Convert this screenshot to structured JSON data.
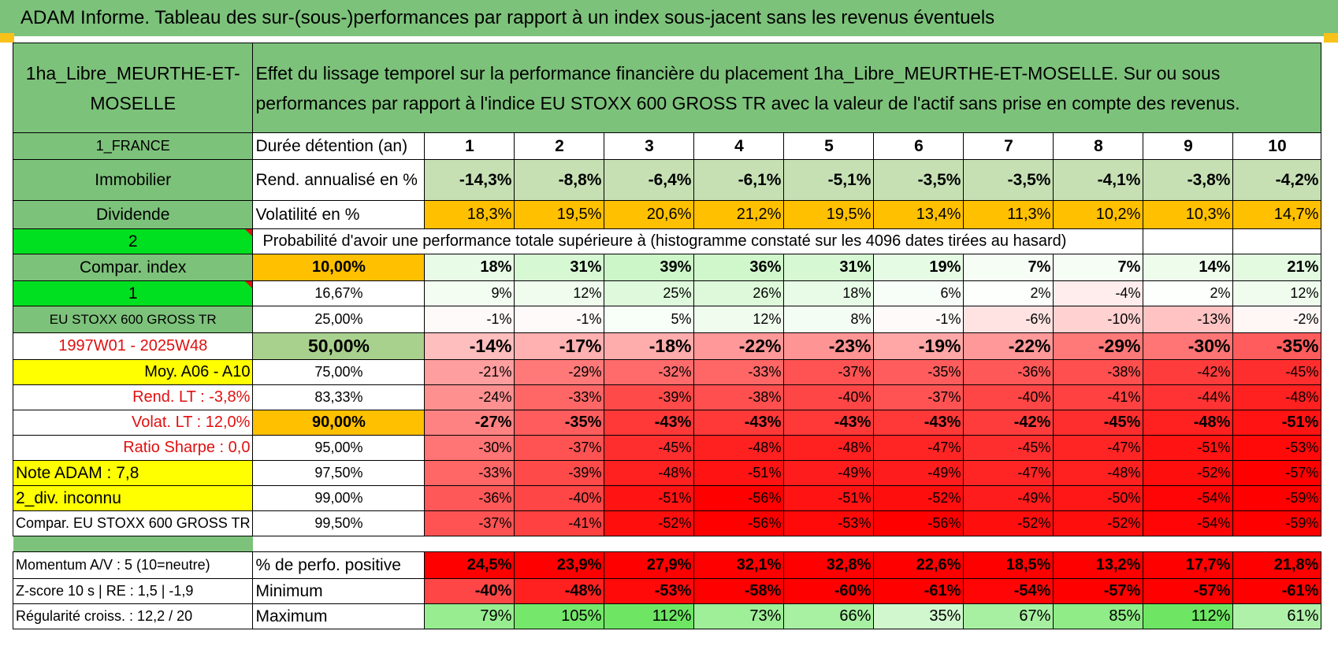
{
  "title": "ADAM Informe. Tableau des sur-(sous-)performances par rapport à un index sous-jacent sans les revenus éventuels",
  "header": {
    "asset_name": "1ha_Libre_MEURTHE-ET-MOSELLE",
    "description": "Effet du lissage temporel sur la performance financière du placement 1ha_Libre_MEURTHE-ET-MOSELLE. Sur ou sous performances par rapport à l'indice EU STOXX 600 GROSS TR avec la valeur de l'actif sans prise en compte des revenus."
  },
  "side": {
    "country": "1_FRANCE",
    "category": "Immobilier",
    "type": "Dividende",
    "selector_a": "2",
    "compar_label": "Compar. index",
    "selector_b": "1",
    "index_name": "EU STOXX 600 GROSS TR",
    "period": "1997W01 - 2025W48",
    "avg": "Moy. A06 - A10",
    "rend_lt": "Rend. LT :    -3,8%",
    "volat_lt": "Volat. LT :    12,0%",
    "sharpe": "Ratio Sharpe :     0,0",
    "note": "Note ADAM : 7,8",
    "div": "2_div. inconnu",
    "compar_full": "Compar. EU STOXX 600 GROSS TR"
  },
  "rows": {
    "duree_label": "Durée détention (an)",
    "years": [
      "1",
      "2",
      "3",
      "4",
      "5",
      "6",
      "7",
      "8",
      "9",
      "10"
    ],
    "rend_label": "Rend. annualisé en %",
    "rend": [
      "-14,3%",
      "-8,8%",
      "-6,4%",
      "-6,1%",
      "-5,1%",
      "-3,5%",
      "-3,5%",
      "-4,1%",
      "-3,8%",
      "-4,2%"
    ],
    "vol_label": "Volatilité en %",
    "vol": [
      "18,3%",
      "19,5%",
      "20,6%",
      "21,2%",
      "19,5%",
      "13,4%",
      "11,3%",
      "10,2%",
      "10,3%",
      "14,7%"
    ],
    "prob_label": "Probabilité d'avoir une performance totale supérieure à (histogramme constaté sur les 4096 dates tirées au hasard)"
  },
  "percentiles": [
    {
      "p": "10,00%",
      "v": [
        "18%",
        "31%",
        "39%",
        "36%",
        "31%",
        "19%",
        "7%",
        "7%",
        "14%",
        "21%"
      ]
    },
    {
      "p": "16,67%",
      "v": [
        "9%",
        "12%",
        "25%",
        "26%",
        "18%",
        "6%",
        "2%",
        "-4%",
        "2%",
        "12%"
      ]
    },
    {
      "p": "25,00%",
      "v": [
        "-1%",
        "-1%",
        "5%",
        "12%",
        "8%",
        "-1%",
        "-6%",
        "-10%",
        "-13%",
        "-2%"
      ]
    },
    {
      "p": "50,00%",
      "v": [
        "-14%",
        "-17%",
        "-18%",
        "-22%",
        "-23%",
        "-19%",
        "-22%",
        "-29%",
        "-30%",
        "-35%"
      ]
    },
    {
      "p": "75,00%",
      "v": [
        "-21%",
        "-29%",
        "-32%",
        "-33%",
        "-37%",
        "-35%",
        "-36%",
        "-38%",
        "-42%",
        "-45%"
      ]
    },
    {
      "p": "83,33%",
      "v": [
        "-24%",
        "-33%",
        "-39%",
        "-38%",
        "-40%",
        "-37%",
        "-40%",
        "-41%",
        "-44%",
        "-48%"
      ]
    },
    {
      "p": "90,00%",
      "v": [
        "-27%",
        "-35%",
        "-43%",
        "-43%",
        "-43%",
        "-43%",
        "-42%",
        "-45%",
        "-48%",
        "-51%"
      ]
    },
    {
      "p": "95,00%",
      "v": [
        "-30%",
        "-37%",
        "-45%",
        "-48%",
        "-48%",
        "-47%",
        "-45%",
        "-47%",
        "-51%",
        "-53%"
      ]
    },
    {
      "p": "97,50%",
      "v": [
        "-33%",
        "-39%",
        "-48%",
        "-51%",
        "-49%",
        "-49%",
        "-47%",
        "-48%",
        "-52%",
        "-57%"
      ]
    },
    {
      "p": "99,00%",
      "v": [
        "-36%",
        "-40%",
        "-51%",
        "-56%",
        "-51%",
        "-52%",
        "-49%",
        "-50%",
        "-54%",
        "-59%"
      ]
    },
    {
      "p": "99,50%",
      "v": [
        "-37%",
        "-41%",
        "-52%",
        "-56%",
        "-53%",
        "-56%",
        "-52%",
        "-52%",
        "-54%",
        "-59%"
      ]
    }
  ],
  "bottom": {
    "momentum": "Momentum A/V : 5 (10=neutre)",
    "zscore": "Z-score 10 s | RE : 1,5 | -1,9",
    "regularite": "Régularité croiss. : 12,2 / 20",
    "pos_label": "% de perfo. positive",
    "pos": [
      "24,5%",
      "23,9%",
      "27,9%",
      "32,1%",
      "32,8%",
      "22,6%",
      "18,5%",
      "13,2%",
      "17,7%",
      "21,8%"
    ],
    "min_label": "Minimum",
    "min": [
      "-40%",
      "-48%",
      "-53%",
      "-58%",
      "-60%",
      "-61%",
      "-54%",
      "-57%",
      "-57%",
      "-61%"
    ],
    "max_label": "Maximum",
    "max": [
      "79%",
      "105%",
      "112%",
      "73%",
      "66%",
      "35%",
      "67%",
      "85%",
      "112%",
      "61%"
    ]
  }
}
